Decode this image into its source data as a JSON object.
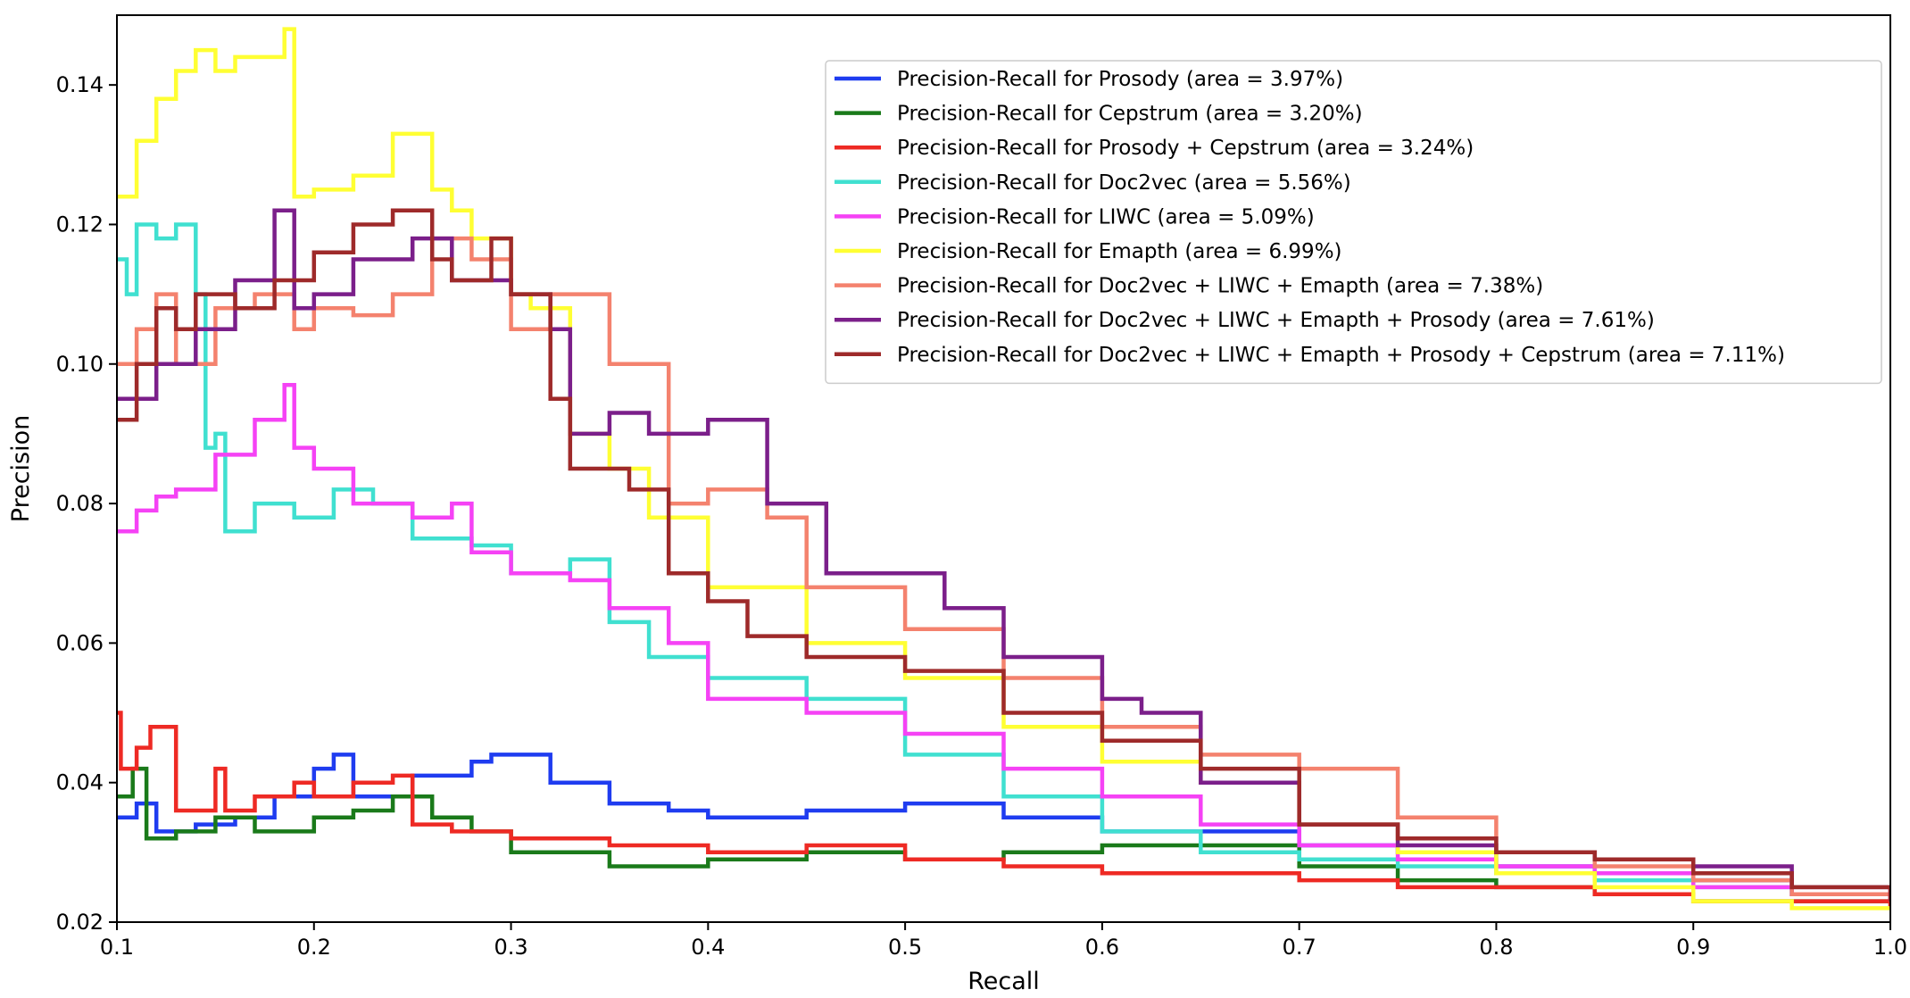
{
  "chart_data": {
    "type": "line",
    "xlabel": "Recall",
    "ylabel": "Precision",
    "xlim": [
      0.1,
      1.0
    ],
    "ylim": [
      0.02,
      0.15
    ],
    "xticks": [
      0.1,
      0.2,
      0.3,
      0.4,
      0.5,
      0.6,
      0.7,
      0.8,
      0.9,
      1.0
    ],
    "yticks": [
      0.02,
      0.04,
      0.06,
      0.08,
      0.1,
      0.12,
      0.14
    ],
    "xtick_labels": [
      "0.1",
      "0.2",
      "0.3",
      "0.4",
      "0.5",
      "0.6",
      "0.7",
      "0.8",
      "0.9",
      "1.0"
    ],
    "ytick_labels": [
      "0.02",
      "0.04",
      "0.06",
      "0.08",
      "0.10",
      "0.12",
      "0.14"
    ],
    "grid": false,
    "legend_position": "top-right",
    "series": [
      {
        "name": "Precision-Recall for Prosody (area = 3.97%)",
        "color": "#1f3cf0",
        "x": [
          0.1,
          0.11,
          0.12,
          0.14,
          0.16,
          0.18,
          0.2,
          0.21,
          0.22,
          0.25,
          0.28,
          0.29,
          0.32,
          0.35,
          0.38,
          0.4,
          0.45,
          0.5,
          0.55,
          0.6,
          0.65,
          0.7,
          0.75,
          0.8,
          0.85,
          0.9,
          0.95,
          1.0
        ],
        "y": [
          0.035,
          0.037,
          0.033,
          0.034,
          0.035,
          0.038,
          0.042,
          0.044,
          0.038,
          0.041,
          0.043,
          0.044,
          0.04,
          0.037,
          0.036,
          0.035,
          0.036,
          0.037,
          0.035,
          0.033,
          0.033,
          0.031,
          0.03,
          0.028,
          0.027,
          0.026,
          0.024,
          0.023
        ]
      },
      {
        "name": "Precision-Recall for Cepstrum (area = 3.20%)",
        "color": "#1a7a1a",
        "x": [
          0.1,
          0.108,
          0.115,
          0.13,
          0.15,
          0.17,
          0.2,
          0.22,
          0.24,
          0.26,
          0.28,
          0.3,
          0.35,
          0.4,
          0.45,
          0.5,
          0.55,
          0.6,
          0.65,
          0.7,
          0.75,
          0.8,
          0.85,
          0.9,
          0.95,
          1.0
        ],
        "y": [
          0.038,
          0.042,
          0.032,
          0.033,
          0.035,
          0.033,
          0.035,
          0.036,
          0.038,
          0.035,
          0.033,
          0.03,
          0.028,
          0.029,
          0.03,
          0.029,
          0.03,
          0.031,
          0.031,
          0.028,
          0.026,
          0.025,
          0.024,
          0.023,
          0.023,
          0.022
        ]
      },
      {
        "name": "Precision-Recall for Prosody + Cepstrum (area = 3.24%)",
        "color": "#ee2a24",
        "x": [
          0.1,
          0.102,
          0.11,
          0.117,
          0.13,
          0.15,
          0.155,
          0.17,
          0.19,
          0.2,
          0.22,
          0.24,
          0.25,
          0.27,
          0.3,
          0.35,
          0.4,
          0.45,
          0.5,
          0.55,
          0.6,
          0.65,
          0.7,
          0.75,
          0.8,
          0.85,
          0.9,
          0.95,
          1.0
        ],
        "y": [
          0.05,
          0.042,
          0.045,
          0.048,
          0.036,
          0.042,
          0.036,
          0.038,
          0.04,
          0.038,
          0.04,
          0.041,
          0.034,
          0.033,
          0.032,
          0.031,
          0.03,
          0.031,
          0.029,
          0.028,
          0.027,
          0.027,
          0.026,
          0.025,
          0.025,
          0.024,
          0.023,
          0.023,
          0.022
        ]
      },
      {
        "name": "Precision-Recall for Doc2vec (area = 5.56%)",
        "color": "#40e0d0",
        "x": [
          0.1,
          0.105,
          0.11,
          0.12,
          0.13,
          0.14,
          0.145,
          0.15,
          0.155,
          0.17,
          0.19,
          0.21,
          0.23,
          0.25,
          0.28,
          0.3,
          0.33,
          0.35,
          0.37,
          0.4,
          0.45,
          0.5,
          0.55,
          0.6,
          0.65,
          0.7,
          0.75,
          0.8,
          0.85,
          0.9,
          0.95,
          1.0
        ],
        "y": [
          0.115,
          0.11,
          0.12,
          0.118,
          0.12,
          0.11,
          0.088,
          0.09,
          0.076,
          0.08,
          0.078,
          0.082,
          0.08,
          0.075,
          0.074,
          0.07,
          0.072,
          0.063,
          0.058,
          0.055,
          0.052,
          0.044,
          0.038,
          0.033,
          0.03,
          0.029,
          0.028,
          0.027,
          0.026,
          0.025,
          0.024,
          0.023
        ]
      },
      {
        "name": "Precision-Recall for LIWC (area = 5.09%)",
        "color": "#f542f5",
        "x": [
          0.1,
          0.11,
          0.12,
          0.13,
          0.15,
          0.17,
          0.185,
          0.19,
          0.2,
          0.22,
          0.25,
          0.27,
          0.28,
          0.3,
          0.33,
          0.35,
          0.38,
          0.4,
          0.45,
          0.5,
          0.55,
          0.6,
          0.65,
          0.7,
          0.75,
          0.8,
          0.85,
          0.9,
          0.95,
          1.0
        ],
        "y": [
          0.076,
          0.079,
          0.081,
          0.082,
          0.087,
          0.092,
          0.097,
          0.088,
          0.085,
          0.08,
          0.078,
          0.08,
          0.073,
          0.07,
          0.069,
          0.065,
          0.06,
          0.052,
          0.05,
          0.047,
          0.042,
          0.038,
          0.034,
          0.031,
          0.029,
          0.028,
          0.027,
          0.025,
          0.024,
          0.023
        ]
      },
      {
        "name": "Precision-Recall for Emapth (area = 6.99%)",
        "color": "#ffff33",
        "x": [
          0.1,
          0.11,
          0.12,
          0.13,
          0.14,
          0.15,
          0.16,
          0.17,
          0.185,
          0.19,
          0.2,
          0.22,
          0.24,
          0.26,
          0.27,
          0.28,
          0.3,
          0.31,
          0.33,
          0.35,
          0.37,
          0.4,
          0.45,
          0.5,
          0.55,
          0.6,
          0.65,
          0.7,
          0.75,
          0.8,
          0.85,
          0.9,
          0.95,
          1.0
        ],
        "y": [
          0.124,
          0.132,
          0.138,
          0.142,
          0.145,
          0.142,
          0.144,
          0.144,
          0.148,
          0.124,
          0.125,
          0.127,
          0.133,
          0.125,
          0.122,
          0.118,
          0.11,
          0.108,
          0.09,
          0.085,
          0.078,
          0.068,
          0.06,
          0.055,
          0.048,
          0.043,
          0.04,
          0.034,
          0.03,
          0.027,
          0.025,
          0.023,
          0.022,
          0.022
        ]
      },
      {
        "name": "Precision-Recall for Doc2vec + LIWC + Emapth (area = 7.38%)",
        "color": "#f4826e",
        "x": [
          0.1,
          0.11,
          0.12,
          0.13,
          0.15,
          0.17,
          0.19,
          0.2,
          0.22,
          0.24,
          0.26,
          0.28,
          0.3,
          0.32,
          0.35,
          0.37,
          0.38,
          0.4,
          0.43,
          0.45,
          0.5,
          0.55,
          0.6,
          0.65,
          0.7,
          0.75,
          0.8,
          0.85,
          0.9,
          0.95,
          1.0
        ],
        "y": [
          0.1,
          0.105,
          0.11,
          0.1,
          0.108,
          0.11,
          0.105,
          0.108,
          0.107,
          0.11,
          0.118,
          0.115,
          0.105,
          0.11,
          0.1,
          0.1,
          0.08,
          0.082,
          0.078,
          0.068,
          0.062,
          0.055,
          0.048,
          0.044,
          0.042,
          0.035,
          0.03,
          0.028,
          0.026,
          0.024,
          0.023
        ]
      },
      {
        "name": "Precision-Recall for Doc2vec + LIWC + Emapth + Prosody (area = 7.61%)",
        "color": "#7b1f8a",
        "x": [
          0.1,
          0.12,
          0.14,
          0.16,
          0.18,
          0.19,
          0.2,
          0.22,
          0.25,
          0.27,
          0.3,
          0.32,
          0.33,
          0.35,
          0.37,
          0.4,
          0.43,
          0.44,
          0.46,
          0.5,
          0.52,
          0.55,
          0.6,
          0.62,
          0.65,
          0.7,
          0.75,
          0.8,
          0.85,
          0.9,
          0.95,
          1.0
        ],
        "y": [
          0.095,
          0.1,
          0.105,
          0.112,
          0.122,
          0.108,
          0.11,
          0.115,
          0.118,
          0.112,
          0.11,
          0.105,
          0.09,
          0.093,
          0.09,
          0.092,
          0.08,
          0.08,
          0.07,
          0.07,
          0.065,
          0.058,
          0.052,
          0.05,
          0.04,
          0.034,
          0.031,
          0.03,
          0.029,
          0.028,
          0.025,
          0.023
        ]
      },
      {
        "name": "Precision-Recall for Doc2vec + LIWC + Emapth + Prosody + Cepstrum (area = 7.11%)",
        "color": "#9e2a2a",
        "x": [
          0.1,
          0.11,
          0.12,
          0.13,
          0.14,
          0.16,
          0.18,
          0.2,
          0.22,
          0.24,
          0.26,
          0.27,
          0.29,
          0.3,
          0.32,
          0.33,
          0.36,
          0.38,
          0.4,
          0.42,
          0.45,
          0.5,
          0.55,
          0.6,
          0.65,
          0.7,
          0.75,
          0.8,
          0.85,
          0.9,
          0.95,
          1.0
        ],
        "y": [
          0.092,
          0.1,
          0.108,
          0.105,
          0.11,
          0.108,
          0.112,
          0.116,
          0.12,
          0.122,
          0.115,
          0.112,
          0.118,
          0.11,
          0.095,
          0.085,
          0.082,
          0.07,
          0.066,
          0.061,
          0.058,
          0.056,
          0.05,
          0.046,
          0.042,
          0.034,
          0.032,
          0.03,
          0.029,
          0.027,
          0.025,
          0.023
        ]
      }
    ]
  }
}
